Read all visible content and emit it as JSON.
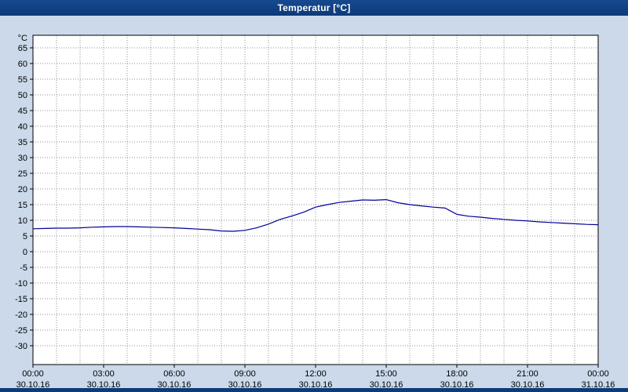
{
  "window": {
    "title": "Temperatur [°C]"
  },
  "colors": {
    "window_background": "#cbd9ea",
    "titlebar": "#0d3a78",
    "plot_background": "#ffffff",
    "frame": "#000000",
    "grid": "#909090",
    "line": "#000099",
    "tick_text": "#000000"
  },
  "chart_data": {
    "type": "line",
    "title": "Temperatur [°C]",
    "ylabel": "°C",
    "xlabel": "",
    "ylim": [
      -30,
      65
    ],
    "y_tick_step": 5,
    "x_hours_range": [
      0,
      24
    ],
    "grid": "dotted, hourly vertical and 5-degree horizontal",
    "legend_position": "none",
    "x_ticks": [
      {
        "time": "00:00",
        "date": "30.10.16",
        "hour": 0
      },
      {
        "time": "03:00",
        "date": "30.10.16",
        "hour": 3
      },
      {
        "time": "06:00",
        "date": "30.10.16",
        "hour": 6
      },
      {
        "time": "09:00",
        "date": "30.10.16",
        "hour": 9
      },
      {
        "time": "12:00",
        "date": "30.10.16",
        "hour": 12
      },
      {
        "time": "15:00",
        "date": "30.10.16",
        "hour": 15
      },
      {
        "time": "18:00",
        "date": "30.10.16",
        "hour": 18
      },
      {
        "time": "21:00",
        "date": "30.10.16",
        "hour": 21
      },
      {
        "time": "00:00",
        "date": "31.10.16",
        "hour": 24
      }
    ],
    "series": [
      {
        "name": "Temperatur",
        "color": "#000099",
        "x": [
          0,
          0.5,
          1,
          1.5,
          2,
          2.5,
          3,
          3.5,
          4,
          4.5,
          5,
          5.5,
          6,
          6.5,
          7,
          7.5,
          8,
          8.5,
          9,
          9.5,
          10,
          10.5,
          11,
          11.5,
          12,
          12.5,
          13,
          13.5,
          14,
          14.5,
          15,
          15.5,
          16,
          16.5,
          17,
          17.5,
          18,
          18.5,
          19,
          19.5,
          20,
          20.5,
          21,
          21.5,
          22,
          22.5,
          23,
          23.5,
          24
        ],
        "y": [
          7.3,
          7.4,
          7.5,
          7.5,
          7.6,
          7.8,
          7.9,
          8.0,
          8.0,
          7.9,
          7.8,
          7.7,
          7.6,
          7.4,
          7.2,
          7.0,
          6.6,
          6.5,
          6.8,
          7.6,
          8.8,
          10.3,
          11.4,
          12.6,
          14.2,
          15.0,
          15.7,
          16.1,
          16.5,
          16.4,
          16.6,
          15.6,
          15.0,
          14.6,
          14.2,
          13.9,
          11.9,
          11.3,
          11.0,
          10.6,
          10.3,
          10.0,
          9.8,
          9.5,
          9.3,
          9.1,
          8.9,
          8.7,
          8.6
        ]
      }
    ]
  }
}
